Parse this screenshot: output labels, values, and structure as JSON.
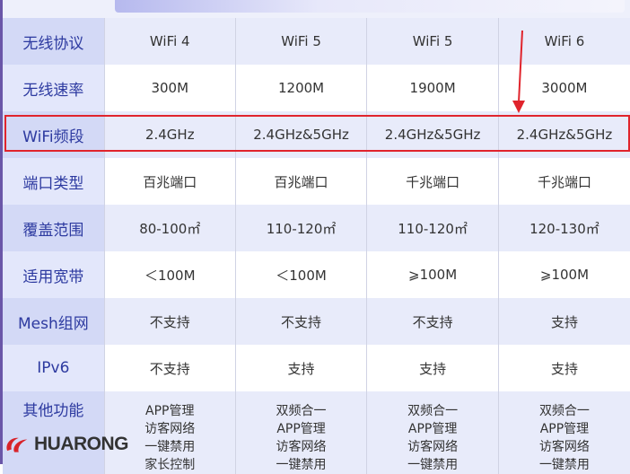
{
  "rows": [
    {
      "label": "无线协议",
      "cells": [
        "WiFi 4",
        "WiFi 5",
        "WiFi 5",
        "WiFi 6"
      ]
    },
    {
      "label": "无线速率",
      "cells": [
        "300M",
        "1200M",
        "1900M",
        "3000M"
      ]
    },
    {
      "label": "WiFi频段",
      "cells": [
        "2.4GHz",
        "2.4GHz&5GHz",
        "2.4GHz&5GHz",
        "2.4GHz&5GHz"
      ]
    },
    {
      "label": "端口类型",
      "cells": [
        "百兆端口",
        "百兆端口",
        "千兆端口",
        "千兆端口"
      ]
    },
    {
      "label": "覆盖范围",
      "cells": [
        "80-100㎡",
        "110-120㎡",
        "110-120㎡",
        "120-130㎡"
      ]
    },
    {
      "label": "适用宽带",
      "cells": [
        "＜100M",
        "＜100M",
        "⩾100M",
        "⩾100M"
      ]
    },
    {
      "label": "Mesh组网",
      "cells": [
        "不支持",
        "不支持",
        "不支持",
        "支持"
      ]
    },
    {
      "label": "IPv6",
      "cells": [
        "不支持",
        "支持",
        "支持",
        "支持"
      ]
    }
  ],
  "other": {
    "label": "其他功能",
    "cells": [
      [
        "APP管理",
        "访客网络",
        "一键禁用",
        "家长控制"
      ],
      [
        "双频合一",
        "APP管理",
        "访客网络",
        "一键禁用"
      ],
      [
        "双频合一",
        "APP管理",
        "访客网络",
        "一键禁用"
      ],
      [
        "双频合一",
        "APP管理",
        "访客网络",
        "一键禁用"
      ]
    ]
  },
  "watermark": "HUARONG",
  "colors": {
    "highlight": "#e0242c",
    "label_text": "#2d3aa0"
  }
}
